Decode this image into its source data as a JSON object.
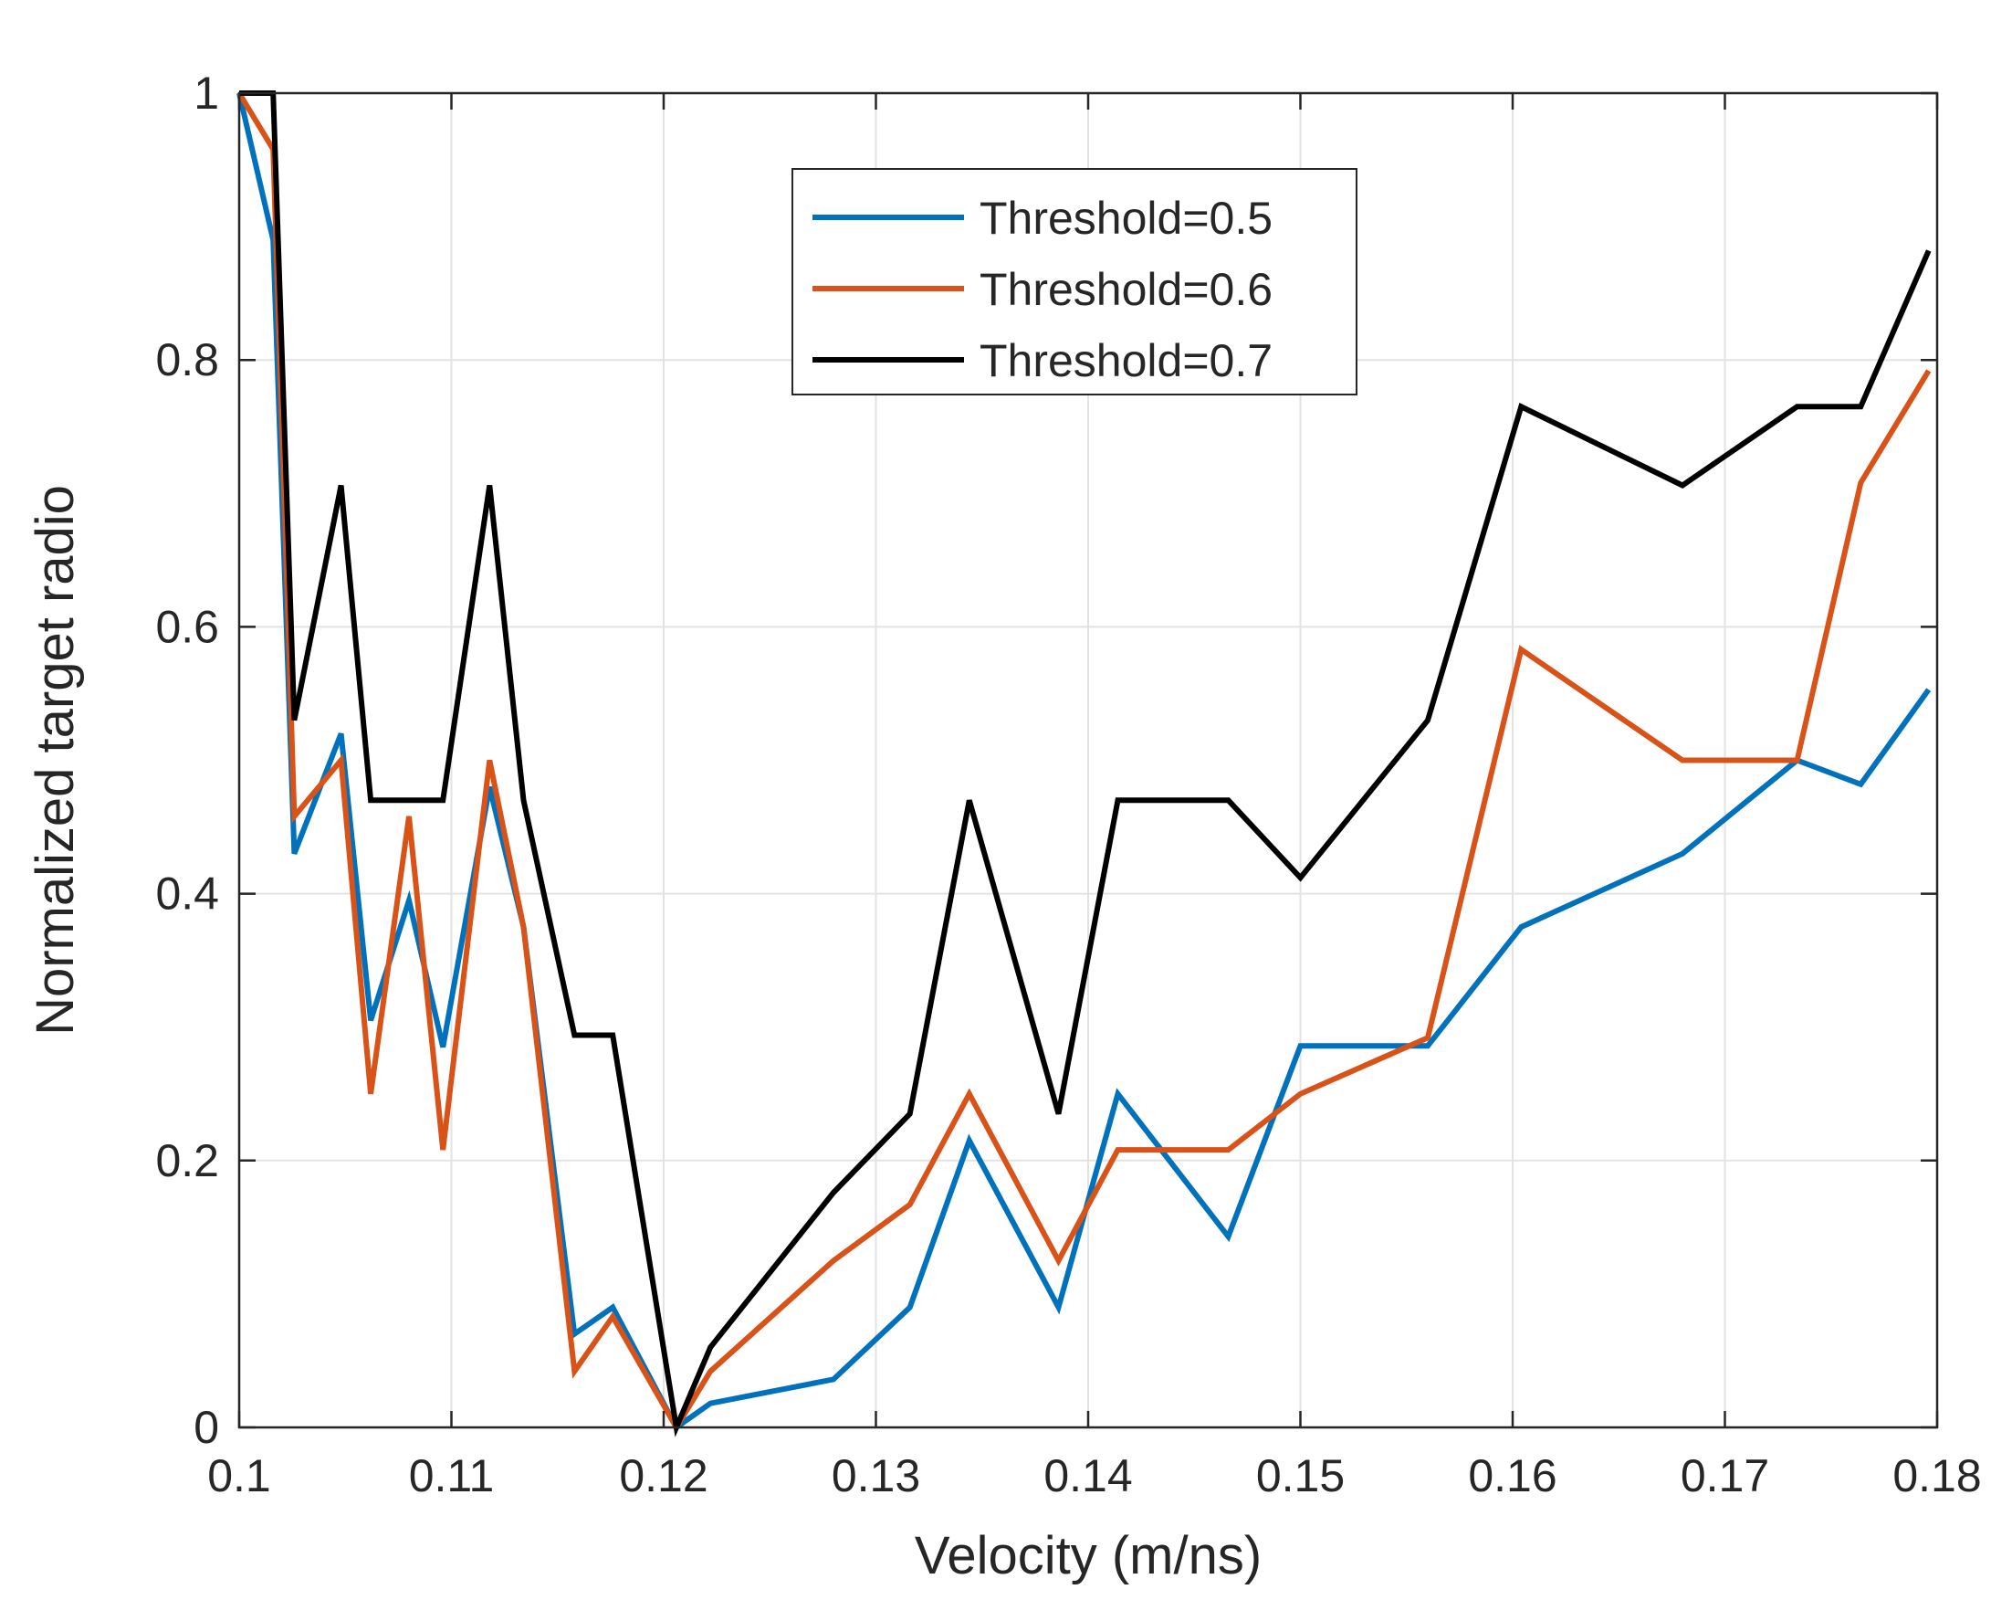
{
  "chart_data": {
    "type": "line",
    "title": "",
    "xlabel": "Velocity (m/ns)",
    "ylabel": "Normalized target radio",
    "xlim": [
      0.1,
      0.18
    ],
    "ylim": [
      0,
      1
    ],
    "xticks": [
      0.1,
      0.11,
      0.12,
      0.13,
      0.14,
      0.15,
      0.16,
      0.17,
      0.18
    ],
    "xtick_labels": [
      "0.1",
      "0.11",
      "0.12",
      "0.13",
      "0.14",
      "0.15",
      "0.16",
      "0.17",
      "0.18"
    ],
    "yticks": [
      0,
      0.2,
      0.4,
      0.6,
      0.8,
      1
    ],
    "ytick_labels": [
      "0",
      "0.2",
      "0.4",
      "0.6",
      "0.8",
      "1"
    ],
    "grid": true,
    "legend_position": "top-center",
    "series": [
      {
        "name": "Threshold=0.5",
        "color": "#0072BD",
        "x": [
          0.1,
          0.1016,
          0.1026,
          0.1048,
          0.1062,
          0.108,
          0.1096,
          0.1118,
          0.1134,
          0.1158,
          0.1176,
          0.1206,
          0.1222,
          0.128,
          0.1316,
          0.1344,
          0.1386,
          0.1414,
          0.1466,
          0.15,
          0.156,
          0.1604,
          0.168,
          0.1734,
          0.1764,
          0.1796
        ],
        "y": [
          1.0,
          0.89,
          0.43,
          0.52,
          0.305,
          0.395,
          0.285,
          0.48,
          0.375,
          0.07,
          0.09,
          0.0,
          0.018,
          0.036,
          0.09,
          0.215,
          0.09,
          0.25,
          0.143,
          0.286,
          0.286,
          0.375,
          0.43,
          0.5,
          0.482,
          0.553
        ]
      },
      {
        "name": "Threshold=0.6",
        "color": "#D95319",
        "x": [
          0.1,
          0.1016,
          0.1026,
          0.1048,
          0.1062,
          0.108,
          0.1096,
          0.1118,
          0.1134,
          0.1158,
          0.1176,
          0.1206,
          0.1222,
          0.128,
          0.1316,
          0.1344,
          0.1386,
          0.1414,
          0.1466,
          0.15,
          0.156,
          0.1604,
          0.168,
          0.1734,
          0.1764,
          0.1796
        ],
        "y": [
          1.0,
          0.958,
          0.458,
          0.5,
          0.25,
          0.458,
          0.208,
          0.5,
          0.375,
          0.042,
          0.083,
          0.0,
          0.042,
          0.125,
          0.167,
          0.25,
          0.125,
          0.208,
          0.208,
          0.25,
          0.292,
          0.583,
          0.5,
          0.5,
          0.708,
          0.792
        ]
      },
      {
        "name": "Threshold=0.7",
        "color": "#000000",
        "x": [
          0.1,
          0.1016,
          0.1026,
          0.1048,
          0.1062,
          0.108,
          0.1096,
          0.1118,
          0.1134,
          0.1158,
          0.1176,
          0.1206,
          0.1222,
          0.128,
          0.1316,
          0.1344,
          0.1386,
          0.1414,
          0.1466,
          0.15,
          0.156,
          0.1604,
          0.168,
          0.1734,
          0.1764,
          0.1796
        ],
        "y": [
          1.0,
          1.0,
          0.53,
          0.706,
          0.47,
          0.47,
          0.47,
          0.706,
          0.47,
          0.294,
          0.294,
          0.0,
          0.06,
          0.176,
          0.235,
          0.47,
          0.235,
          0.47,
          0.47,
          0.412,
          0.53,
          0.765,
          0.706,
          0.765,
          0.765,
          0.882
        ]
      }
    ]
  }
}
